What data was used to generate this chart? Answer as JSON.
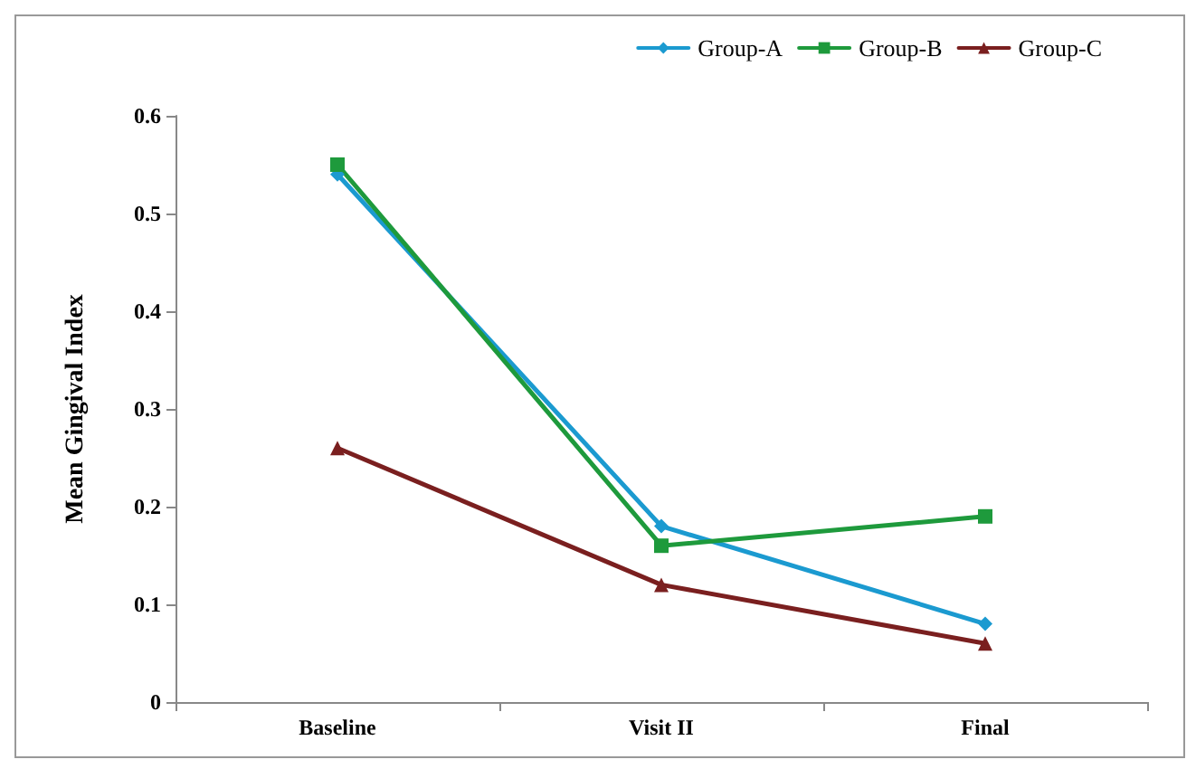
{
  "chart_data": {
    "type": "line",
    "ylabel": "Mean Gingival Index",
    "categories": [
      "Baseline",
      "Visit II",
      "Final"
    ],
    "series": [
      {
        "name": "Group-A",
        "color": "#1b9ad0",
        "marker": "diamond",
        "values": [
          0.54,
          0.18,
          0.08
        ]
      },
      {
        "name": "Group-B",
        "color": "#1e9a3c",
        "marker": "square",
        "values": [
          0.55,
          0.16,
          0.19
        ]
      },
      {
        "name": "Group-C",
        "color": "#7a1f1f",
        "marker": "triangle",
        "values": [
          0.26,
          0.12,
          0.06
        ]
      }
    ],
    "ylim": [
      0,
      0.6
    ],
    "yticks": [
      0,
      0.1,
      0.2,
      0.3,
      0.4,
      0.5,
      0.6
    ],
    "grid": false,
    "legend": "top right",
    "line_style": "solid"
  }
}
